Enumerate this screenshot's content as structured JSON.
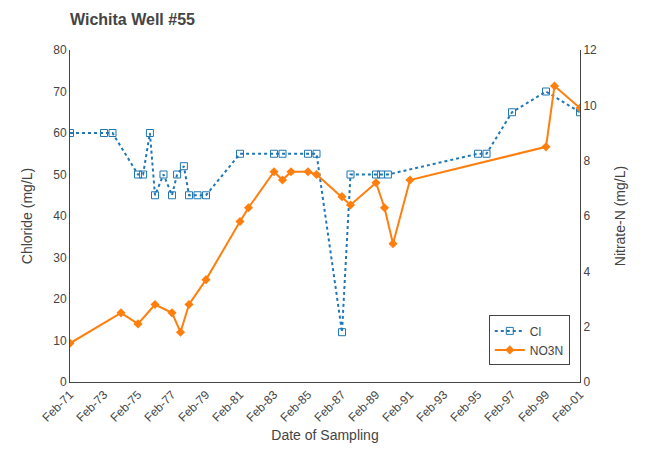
{
  "chart_data": {
    "type": "line",
    "title": "Wichita Well #55",
    "x_label": "Date of Sampling",
    "y_label": "Chloride (mg/L)",
    "y2_label": "Nitrate-N (mg/L)",
    "xlim": [
      1971,
      2001
    ],
    "xticks": [
      {
        "value": 1971,
        "label": "Feb-71"
      },
      {
        "value": 1973,
        "label": "Feb-73"
      },
      {
        "value": 1975,
        "label": "Feb-75"
      },
      {
        "value": 1977,
        "label": "Feb-77"
      },
      {
        "value": 1979,
        "label": "Feb-79"
      },
      {
        "value": 1981,
        "label": "Feb-81"
      },
      {
        "value": 1983,
        "label": "Feb-83"
      },
      {
        "value": 1985,
        "label": "Feb-85"
      },
      {
        "value": 1987,
        "label": "Feb-87"
      },
      {
        "value": 1989,
        "label": "Feb-89"
      },
      {
        "value": 1991,
        "label": "Feb-91"
      },
      {
        "value": 1993,
        "label": "Feb-93"
      },
      {
        "value": 1995,
        "label": "Feb-95"
      },
      {
        "value": 1997,
        "label": "Feb-97"
      },
      {
        "value": 1999,
        "label": "Feb-99"
      },
      {
        "value": 2001,
        "label": "Feb-01"
      }
    ],
    "ylim": [
      0,
      80
    ],
    "yticks": [
      0,
      10,
      20,
      30,
      40,
      50,
      60,
      70,
      80
    ],
    "y2lim": [
      0,
      12
    ],
    "y2ticks": [
      0,
      2,
      4,
      6,
      8,
      10,
      12
    ],
    "grid": false,
    "legend": "lower right",
    "series": [
      {
        "name": "Cl",
        "marker": "square-open",
        "line_style": "dotted",
        "x": [
          1971,
          1973,
          1973.5,
          1975,
          1975.3,
          1975.7,
          1976,
          1976.5,
          1977,
          1977.3,
          1977.7,
          1978,
          1978.5,
          1979,
          1981,
          1983,
          1983.5,
          1985,
          1985.5,
          1987,
          1987.5,
          1989,
          1989.3,
          1989.7,
          1995,
          1995.5,
          1997,
          1999,
          2001
        ],
        "values": [
          60,
          60,
          60,
          50,
          50,
          60,
          45,
          50,
          45,
          50,
          52,
          45,
          45,
          45,
          55,
          55,
          55,
          55,
          55,
          12,
          50,
          50,
          50,
          50,
          55,
          55,
          65,
          70,
          65
        ]
      },
      {
        "name": "NO3N",
        "axis": "y2",
        "marker": "diamond",
        "line_style": "solid",
        "x": [
          1971,
          1974,
          1975,
          1976,
          1977,
          1977.5,
          1978,
          1979,
          1981,
          1981.5,
          1983,
          1983.5,
          1984,
          1985,
          1985.5,
          1987,
          1987.5,
          1989,
          1989.5,
          1990,
          1991,
          1999,
          1999.5,
          2001
        ],
        "values": [
          1.4,
          2.5,
          2.1,
          2.8,
          2.5,
          1.8,
          2.8,
          3.7,
          5.8,
          6.3,
          7.6,
          7.3,
          7.6,
          7.6,
          7.5,
          6.7,
          6.4,
          7.2,
          6.3,
          5.0,
          7.3,
          8.5,
          10.7,
          9.9
        ]
      }
    ]
  }
}
